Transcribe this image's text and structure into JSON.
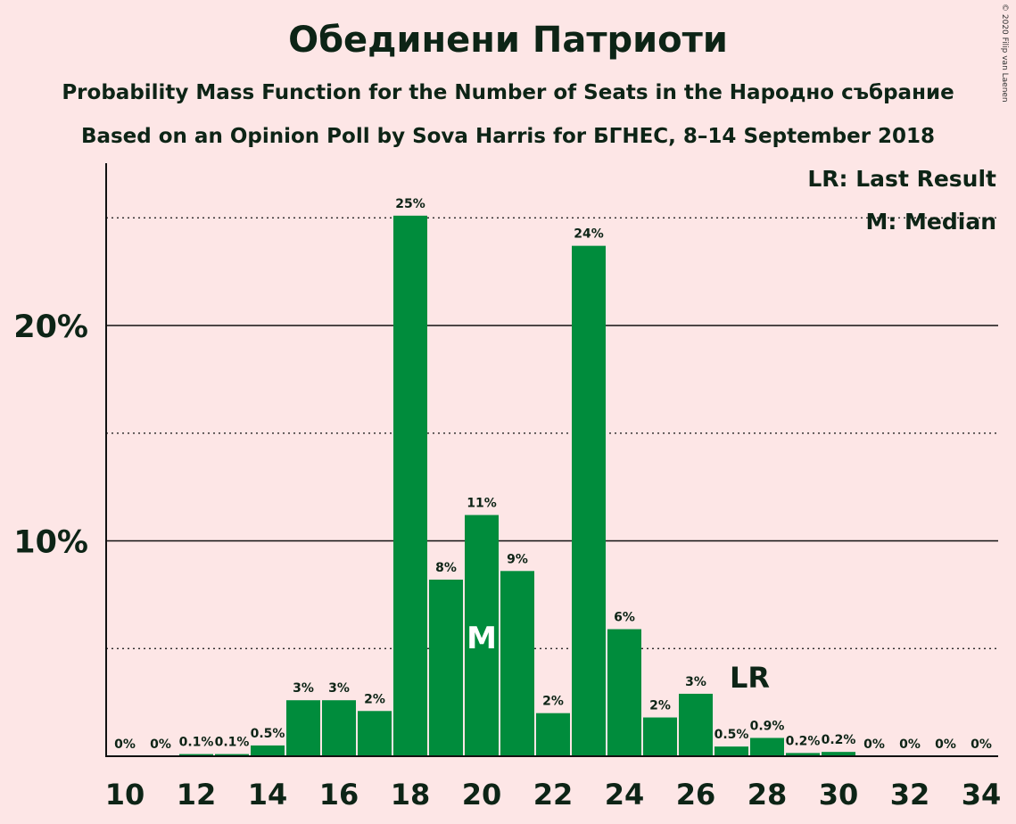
{
  "header": {
    "title": "Обединени Патриоти",
    "subtitle_1": "Probability Mass Function for the Number of Seats in the Народно събрание",
    "subtitle_2": "Based on an Opinion Poll by Sova Harris for БГНЕС, 8–14 September 2018",
    "copyright": "© 2020 Filip van Laenen"
  },
  "colors": {
    "background": "#fde6e6",
    "bar": "#008c3c",
    "text": "#0d2416"
  },
  "chart_data": {
    "type": "bar",
    "x": [
      10,
      11,
      12,
      13,
      14,
      15,
      16,
      17,
      18,
      19,
      20,
      21,
      22,
      23,
      24,
      25,
      26,
      27,
      28,
      29,
      30,
      31,
      32,
      33,
      34
    ],
    "values": [
      0,
      0,
      0.1,
      0.1,
      0.5,
      2.6,
      2.6,
      2.1,
      25.1,
      8.2,
      11.2,
      8.6,
      2.0,
      23.7,
      5.9,
      1.8,
      2.9,
      0.45,
      0.85,
      0.15,
      0.2,
      0,
      0,
      0,
      0
    ],
    "data_labels": [
      "0%",
      "0%",
      "0.1%",
      "0.1%",
      "0.5%",
      "3%",
      "3%",
      "2%",
      "25%",
      "8%",
      "11%",
      "9%",
      "2%",
      "24%",
      "6%",
      "2%",
      "3%",
      "0.5%",
      "0.9%",
      "0.2%",
      "0.2%",
      "0%",
      "0%",
      "0%",
      "0%"
    ],
    "x_tick_labels": [
      "10",
      "12",
      "14",
      "16",
      "18",
      "20",
      "22",
      "24",
      "26",
      "28",
      "30",
      "32",
      "34"
    ],
    "y_tick_labels": [
      "10%",
      "20%"
    ],
    "ylim": [
      0,
      27.5
    ],
    "median": 20,
    "median_label": "M",
    "last_result": 27,
    "last_result_label": "LR",
    "legend": [
      "LR: Last Result",
      "M: Median"
    ],
    "legend_position": "top-right",
    "grid": "major solid at 10% steps, minor dotted at 5% steps"
  }
}
